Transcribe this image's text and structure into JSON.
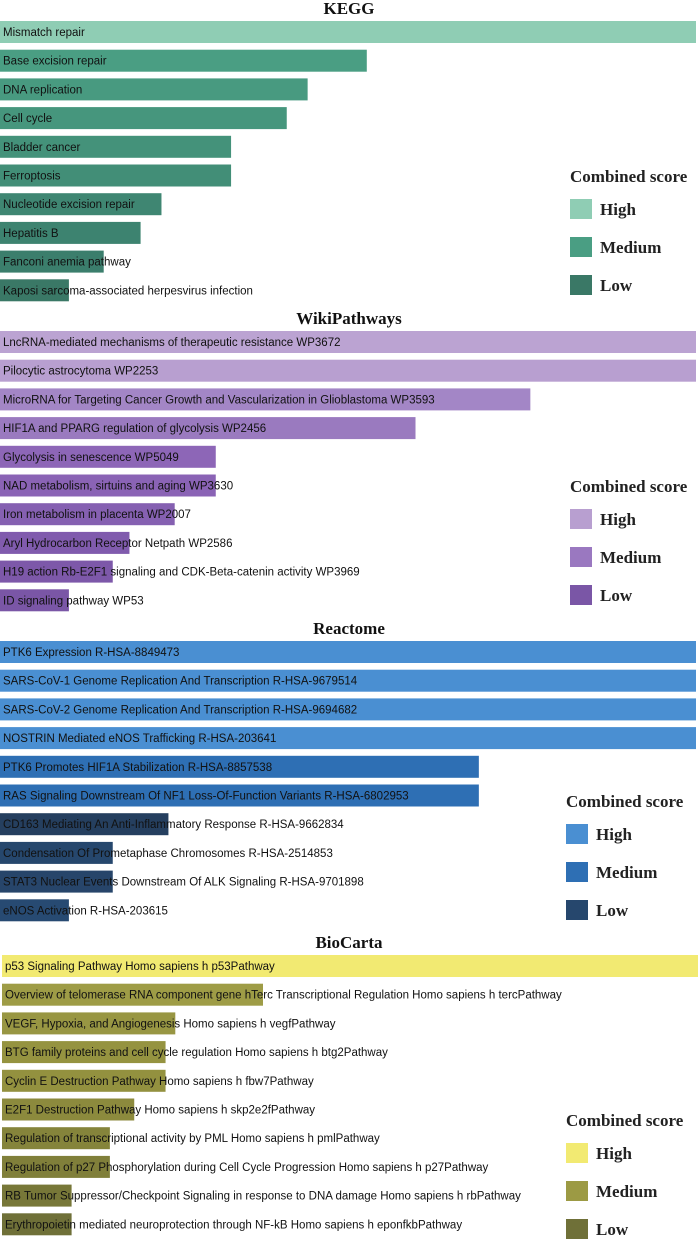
{
  "chart_data": [
    {
      "type": "bar",
      "orientation": "horizontal",
      "title": "KEGG",
      "categories": [
        "Mismatch repair",
        "Base excision repair",
        "DNA replication",
        "Cell cycle",
        "Bladder cancer",
        "Ferroptosis",
        "Nucleotide excision repair",
        "Hepatitis B",
        "Fanconi anemia pathway",
        "Kaposi sarcoma-associated herpesvirus infection"
      ],
      "values": [
        1.0,
        0.527,
        0.442,
        0.412,
        0.332,
        0.332,
        0.232,
        0.202,
        0.149,
        0.099
      ],
      "levels": [
        "High",
        "Medium",
        "Medium",
        "Medium",
        "Medium",
        "Medium",
        "Low",
        "Low",
        "Low",
        "Low"
      ],
      "legend": {
        "title": "Combined score",
        "position": "right",
        "items": [
          {
            "label": "High",
            "color": "#8fcdb4"
          },
          {
            "label": "Medium",
            "color": "#4a9e83"
          },
          {
            "label": "Low",
            "color": "#3a7866"
          }
        ]
      },
      "colors": [
        "#8fcdb4",
        "#4a9e83",
        "#489a80",
        "#46967d",
        "#44927a",
        "#428e77",
        "#3f8672",
        "#3d8370",
        "#3b7e6c",
        "#3a7866"
      ]
    },
    {
      "type": "bar",
      "orientation": "horizontal",
      "title": "WikiPathways",
      "categories": [
        "LncRNA-mediated mechanisms of therapeutic resistance WP3672",
        "Pilocytic astrocytoma WP2253",
        "MicroRNA for Targeting Cancer Growth and Vascularization in Glioblastoma WP3593",
        "HIF1A and PPARG regulation of glycolysis WP2456",
        "Glycolysis in senescence WP5049",
        "NAD metabolism, sirtuins and aging WP3630",
        "Iron metabolism in placenta WP2007",
        "Aryl Hydrocarbon Receptor Netpath WP2586",
        "H19 action Rb-E2F1 signaling and CDK-Beta-catenin activity WP3969",
        "ID signaling pathway WP53"
      ],
      "values": [
        1.0,
        1.0,
        0.762,
        0.597,
        0.31,
        0.31,
        0.251,
        0.186,
        0.162,
        0.099
      ],
      "levels": [
        "High",
        "High",
        "Medium",
        "Medium",
        "Medium",
        "Medium",
        "Low",
        "Low",
        "Low",
        "Low"
      ],
      "legend": {
        "title": "Combined score",
        "position": "right",
        "items": [
          {
            "label": "High",
            "color": "#b89fd0"
          },
          {
            "label": "Medium",
            "color": "#9a78c0"
          },
          {
            "label": "Low",
            "color": "#7a56a6"
          }
        ]
      },
      "colors": [
        "#bba3d2",
        "#b89fd0",
        "#a386c6",
        "#9a7abf",
        "#8d66b7",
        "#8a63b5",
        "#8560b1",
        "#805bad",
        "#7d58a9",
        "#7a56a6"
      ]
    },
    {
      "type": "bar",
      "orientation": "horizontal",
      "title": "Reactome",
      "categories": [
        "PTK6 Expression R-HSA-8849473",
        "SARS-CoV-1 Genome Replication And Transcription R-HSA-9679514",
        "SARS-CoV-2 Genome Replication And Transcription R-HSA-9694682",
        "NOSTRIN Mediated eNOS Trafficking R-HSA-203641",
        "PTK6 Promotes HIF1A Stabilization R-HSA-8857538",
        "RAS Signaling Downstream Of NF1 Loss-Of-Function Variants R-HSA-6802953",
        "CD163 Mediating An Anti-Inflammatory Response R-HSA-9662834",
        "Condensation Of Prometaphase Chromosomes R-HSA-2514853",
        "STAT3 Nuclear Events Downstream Of ALK Signaling R-HSA-9701898",
        "eNOS Activation R-HSA-203615"
      ],
      "values": [
        1.0,
        1.0,
        1.0,
        1.0,
        0.688,
        0.688,
        0.242,
        0.162,
        0.162,
        0.099
      ],
      "levels": [
        "High",
        "High",
        "High",
        "High",
        "Medium",
        "Medium",
        "Low",
        "Low",
        "Low",
        "Low"
      ],
      "legend": {
        "title": "Combined score",
        "position": "right",
        "items": [
          {
            "label": "High",
            "color": "#4a8fd2"
          },
          {
            "label": "Medium",
            "color": "#2e6fb4"
          },
          {
            "label": "Low",
            "color": "#26476d"
          }
        ]
      },
      "colors": [
        "#4a8fd2",
        "#4a8fd2",
        "#4a8fd2",
        "#4a8fd2",
        "#2e6fb4",
        "#2e6fb4",
        "#253f5f",
        "#26476d",
        "#27456a",
        "#274a72"
      ]
    },
    {
      "type": "bar",
      "orientation": "horizontal",
      "title": "BioCarta",
      "categories": [
        "p53 Signaling Pathway Homo sapiens h p53Pathway",
        "Overview of telomerase RNA component gene hTerc Transcriptional Regulation Homo sapiens h tercPathway",
        "VEGF, Hypoxia, and Angiogenesis Homo sapiens h vegfPathway",
        "BTG family proteins and cell cycle regulation Homo sapiens h btg2Pathway",
        "Cyclin E Destruction Pathway Homo sapiens h fbw7Pathway",
        "E2F1 Destruction Pathway Homo sapiens h skp2e2fPathway",
        "Regulation of transcriptional activity by PML Homo sapiens h pmlPathway",
        "Regulation of p27 Phosphorylation during Cell Cycle Progression Homo sapiens h p27Pathway",
        "RB Tumor Suppressor/Checkpoint Signaling in response to DNA damage Homo sapiens h rbPathway",
        "Erythropoietin mediated neuroprotection through NF-kB Homo sapiens h eponfkbPathway"
      ],
      "values": [
        1.0,
        0.375,
        0.249,
        0.235,
        0.235,
        0.19,
        0.155,
        0.155,
        0.1,
        0.1
      ],
      "levels": [
        "High",
        "Medium",
        "Medium",
        "Medium",
        "Medium",
        "Low",
        "Low",
        "Low",
        "Low",
        "Low"
      ],
      "legend": {
        "title": "Combined score",
        "position": "right",
        "items": [
          {
            "label": "High",
            "color": "#f2ea72"
          },
          {
            "label": "Medium",
            "color": "#9c9a44"
          },
          {
            "label": "Low",
            "color": "#6f7038"
          }
        ]
      },
      "colors": [
        "#f2ea72",
        "#9e9c46",
        "#989643",
        "#959340",
        "#93913f",
        "#8c8a3d",
        "#85843b",
        "#807f3a",
        "#777738",
        "#6f7038"
      ]
    }
  ]
}
